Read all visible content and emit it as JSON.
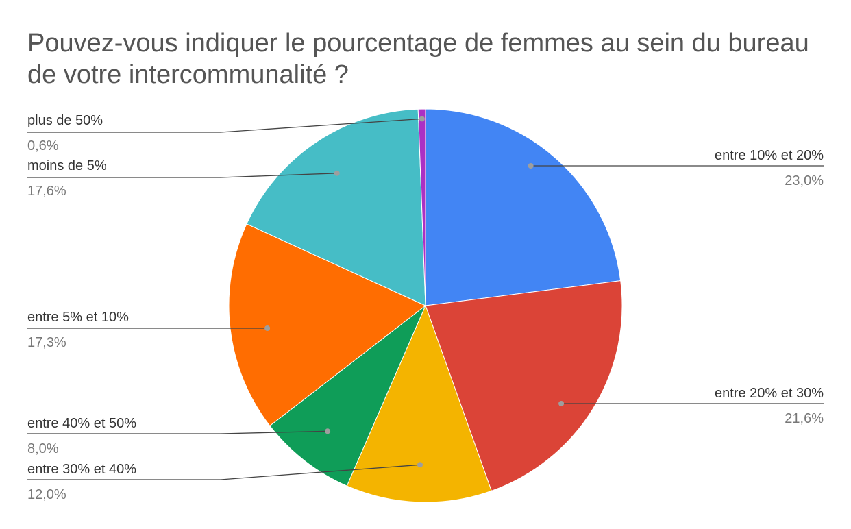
{
  "chart_data": {
    "type": "pie",
    "title": "Pouvez-vous indiquer le pourcentage de femmes au sein du bureau de votre intercommunalité ?",
    "legend": "none",
    "slices": [
      {
        "label": "entre 10% et 20%",
        "value": 23.0,
        "display": "23,0%",
        "color": "#4285f4",
        "side": "right"
      },
      {
        "label": "entre 20% et 30%",
        "value": 21.6,
        "display": "21,6%",
        "color": "#db4437",
        "side": "right"
      },
      {
        "label": "entre 30% et 40%",
        "value": 12.0,
        "display": "12,0%",
        "color": "#f4b400",
        "side": "left"
      },
      {
        "label": "entre 40% et 50%",
        "value": 8.0,
        "display": "8,0%",
        "color": "#0f9d58",
        "side": "left"
      },
      {
        "label": "entre 5% et 10%",
        "value": 17.3,
        "display": "17,3%",
        "color": "#ff6d01",
        "side": "left"
      },
      {
        "label": "moins de 5%",
        "value": 17.6,
        "display": "17,6%",
        "color": "#46bdc6",
        "side": "left"
      },
      {
        "label": "plus de 50%",
        "value": 0.6,
        "display": "0,6%",
        "color": "#ab30c4",
        "side": "left"
      }
    ]
  }
}
